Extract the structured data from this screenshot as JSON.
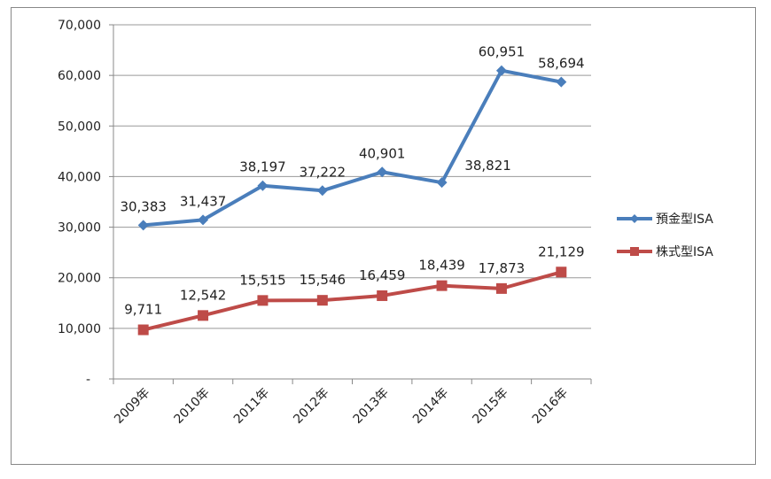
{
  "chart_data": {
    "type": "line",
    "title": "",
    "xlabel": "",
    "ylabel": "",
    "categories": [
      "2009年",
      "2010年",
      "2011年",
      "2012年",
      "2013年",
      "2014年",
      "2015年",
      "2016年"
    ],
    "ylim": [
      0,
      70000
    ],
    "yticks": [
      0,
      10000,
      20000,
      30000,
      40000,
      50000,
      60000,
      70000
    ],
    "ytick_labels": [
      "-",
      "10,000",
      "20,000",
      "30,000",
      "40,000",
      "50,000",
      "60,000",
      "70,000"
    ],
    "grid": "horizontal",
    "legend_position": "right",
    "series": [
      {
        "name": "預金型ISA",
        "color": "#4a7ebb",
        "marker": "diamond",
        "values": [
          30383,
          31437,
          38197,
          37222,
          40901,
          38821,
          60951,
          58694
        ],
        "labels": [
          "30,383",
          "31,437",
          "38,197",
          "37,222",
          "40,901",
          "38,821",
          "60,951",
          "58,694"
        ]
      },
      {
        "name": "株式型ISA",
        "color": "#be4b48",
        "marker": "square",
        "values": [
          9711,
          12542,
          15515,
          15546,
          16459,
          18439,
          17873,
          21129
        ],
        "labels": [
          "9,711",
          "12,542",
          "15,515",
          "15,546",
          "16,459",
          "18,439",
          "17,873",
          "21,129"
        ]
      }
    ]
  }
}
